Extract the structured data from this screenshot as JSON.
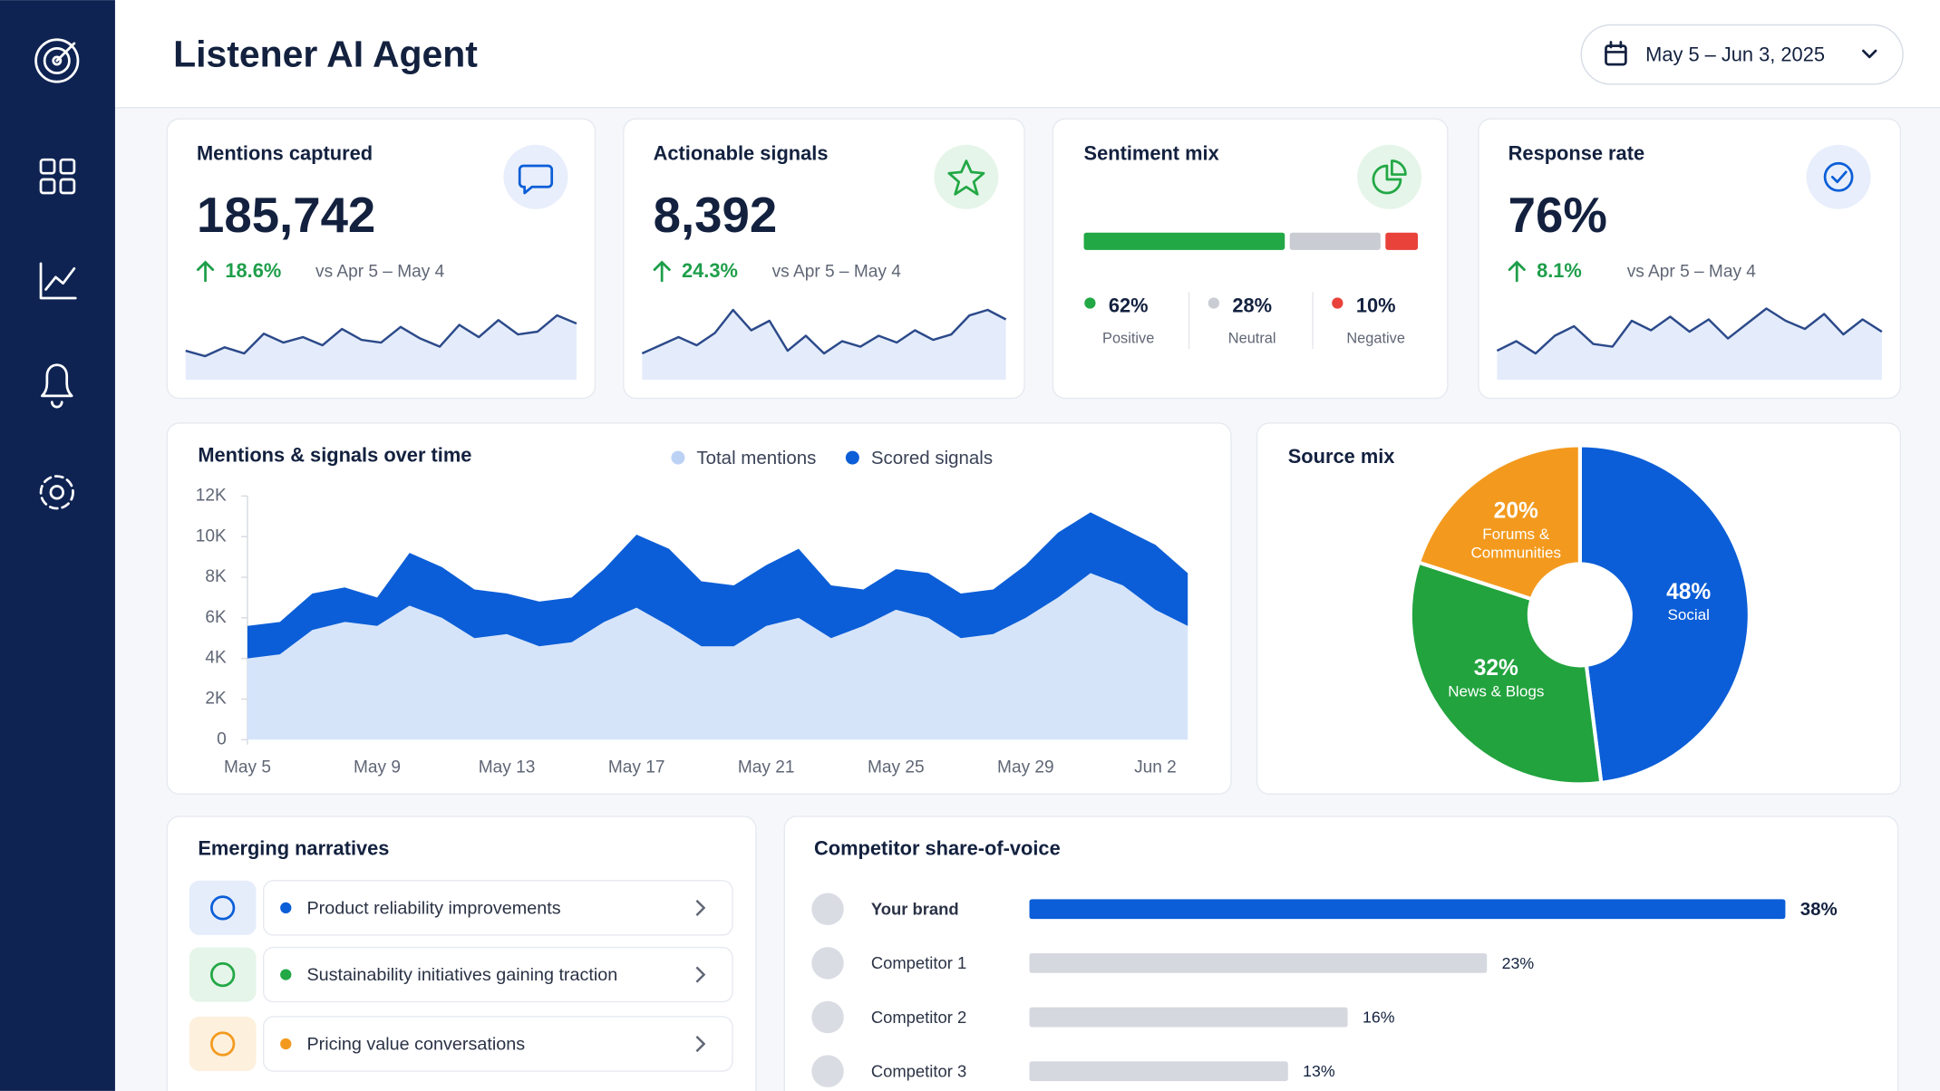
{
  "header": {
    "title": "Listener AI Agent",
    "date_range": "May 5 – Jun 3, 2025"
  },
  "kpis": [
    {
      "title": "Mentions captured",
      "value": "185,742",
      "change": "18.6%",
      "comparison": "vs Apr 5 – May 4",
      "sparkline": [
        3,
        2.2,
        3.5,
        2.6,
        5.5,
        4.2,
        5,
        3.8,
        6.2,
        4.6,
        4.2,
        6.5,
        4.8,
        3.6,
        6.8,
        5,
        7.5,
        5.4,
        5.8,
        8.2,
        7
      ]
    },
    {
      "title": "Actionable signals",
      "value": "8,392",
      "change": "24.3%",
      "comparison": "vs Apr 5 – May 4",
      "sparkline": [
        2.6,
        3.8,
        5,
        3.8,
        5.6,
        9,
        6,
        7.4,
        3,
        5.2,
        2.6,
        4.4,
        3.6,
        5.2,
        4.2,
        6,
        4.6,
        5.4,
        8.2,
        9,
        7.6
      ]
    },
    {
      "title": "Response rate",
      "value": "76%",
      "change": "8.1%",
      "comparison": "vs Apr 5 – May 4",
      "sparkline": [
        3,
        4.4,
        2.6,
        5.2,
        6.6,
        4,
        3.6,
        7.4,
        6,
        8,
        5.8,
        7.6,
        4.8,
        7,
        9.2,
        7.4,
        6.2,
        8.4,
        5.4,
        7.6,
        5.8
      ]
    }
  ],
  "sentiment": {
    "title": "Sentiment mix",
    "segments": [
      {
        "name": "Positive",
        "value": 62,
        "label": "62%",
        "color": "#22a845"
      },
      {
        "name": "Neutral",
        "value": 28,
        "label": "28%",
        "color": "#c9ccd3"
      },
      {
        "name": "Negative",
        "value": 10,
        "label": "10%",
        "color": "#e8423a"
      }
    ]
  },
  "trend_chart": {
    "type": "area",
    "title": "Mentions & signals over time",
    "x": [
      "May 5",
      null,
      null,
      null,
      "May 9",
      null,
      null,
      null,
      "May 13",
      null,
      null,
      null,
      "May 17",
      null,
      null,
      null,
      "May 21",
      null,
      null,
      null,
      "May 25",
      null,
      null,
      null,
      "May 29",
      null,
      null,
      null,
      "Jun 2",
      null
    ],
    "stacked": true,
    "series": [
      {
        "name": "Total mentions",
        "color": "#d6e4fa",
        "legend_color": "#bcd2f5",
        "values": [
          4000,
          4200,
          5400,
          5800,
          5600,
          6600,
          6000,
          5000,
          5200,
          4600,
          4800,
          5800,
          6500,
          5600,
          4600,
          4600,
          5600,
          6000,
          5000,
          5600,
          6400,
          6000,
          5000,
          5200,
          6000,
          7000,
          8200,
          7600,
          6400,
          5600
        ]
      },
      {
        "name": "Scored signals",
        "color": "#0b5ed7",
        "values": [
          1600,
          1600,
          1800,
          1700,
          1400,
          2600,
          2500,
          2400,
          2000,
          2200,
          2200,
          2600,
          3600,
          3800,
          3200,
          3000,
          3000,
          3400,
          2600,
          1800,
          2000,
          2200,
          2200,
          2200,
          2600,
          3200,
          3000,
          2800,
          3200,
          2600
        ]
      }
    ],
    "ylim": [
      0,
      12000
    ],
    "yticks": [
      0,
      {
        "value": 2000,
        "label": "2K"
      },
      {
        "value": 4000,
        "label": "4K"
      },
      {
        "value": 6000,
        "label": "6K"
      },
      {
        "value": 8000,
        "label": "8K"
      },
      {
        "value": 10000,
        "label": "10K"
      },
      {
        "value": 12000,
        "label": "12K"
      }
    ]
  },
  "source_mix": {
    "type": "pie",
    "title": "Source mix",
    "categories": [
      "Social",
      "News & Blogs",
      "Forums & Communities"
    ],
    "values": [
      48,
      32,
      20
    ],
    "value_labels": [
      "48%",
      "32%",
      "20%"
    ],
    "colors": [
      "#0b5ed7",
      "#22a33e",
      "#f39a1e"
    ]
  },
  "narratives": {
    "title": "Emerging narratives",
    "items": [
      {
        "label": "Product reliability improvements",
        "color": "#0b5ed7"
      },
      {
        "label": "Sustainability initiatives gaining traction",
        "color": "#22a845"
      },
      {
        "label": "Pricing value conversations",
        "color": "#f39a1e"
      }
    ]
  },
  "share_of_voice": {
    "type": "bar",
    "title": "Competitor share-of-voice",
    "categories": [
      "Your brand",
      "Competitor 1",
      "Competitor 2",
      "Competitor 3"
    ],
    "values": [
      38,
      23,
      16,
      13
    ],
    "value_labels": [
      "38%",
      "23%",
      "16%",
      "13%"
    ],
    "colors": [
      "#0b5ed7",
      "#d5d8de",
      "#d5d8de",
      "#d5d8de"
    ],
    "xlim": [
      0,
      38
    ]
  }
}
